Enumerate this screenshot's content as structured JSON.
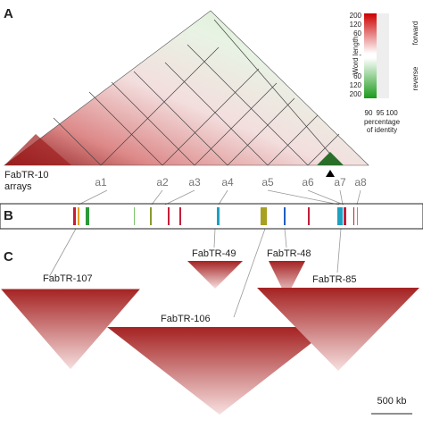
{
  "panels": {
    "a": "A",
    "b": "B",
    "c": "C"
  },
  "legend": {
    "title": "Word length",
    "forward": "forward",
    "reverse": "reverse",
    "ticks": [
      "200",
      "120",
      "60",
      "-",
      "60",
      "120",
      "200"
    ],
    "identity_ticks": [
      "90",
      "95",
      "100"
    ],
    "identity_title": [
      "percentage",
      "of identity"
    ]
  },
  "track": {
    "name": "FabTR-10",
    "sub": "arrays",
    "arrays": [
      "a1",
      "a2",
      "a3",
      "a4",
      "a5",
      "a6",
      "a7",
      "a8"
    ]
  },
  "dotplots": [
    "FabTR-107",
    "FabTR-49",
    "FabTR-48",
    "FabTR-106",
    "FabTR-85"
  ],
  "scale": "500 kb"
}
